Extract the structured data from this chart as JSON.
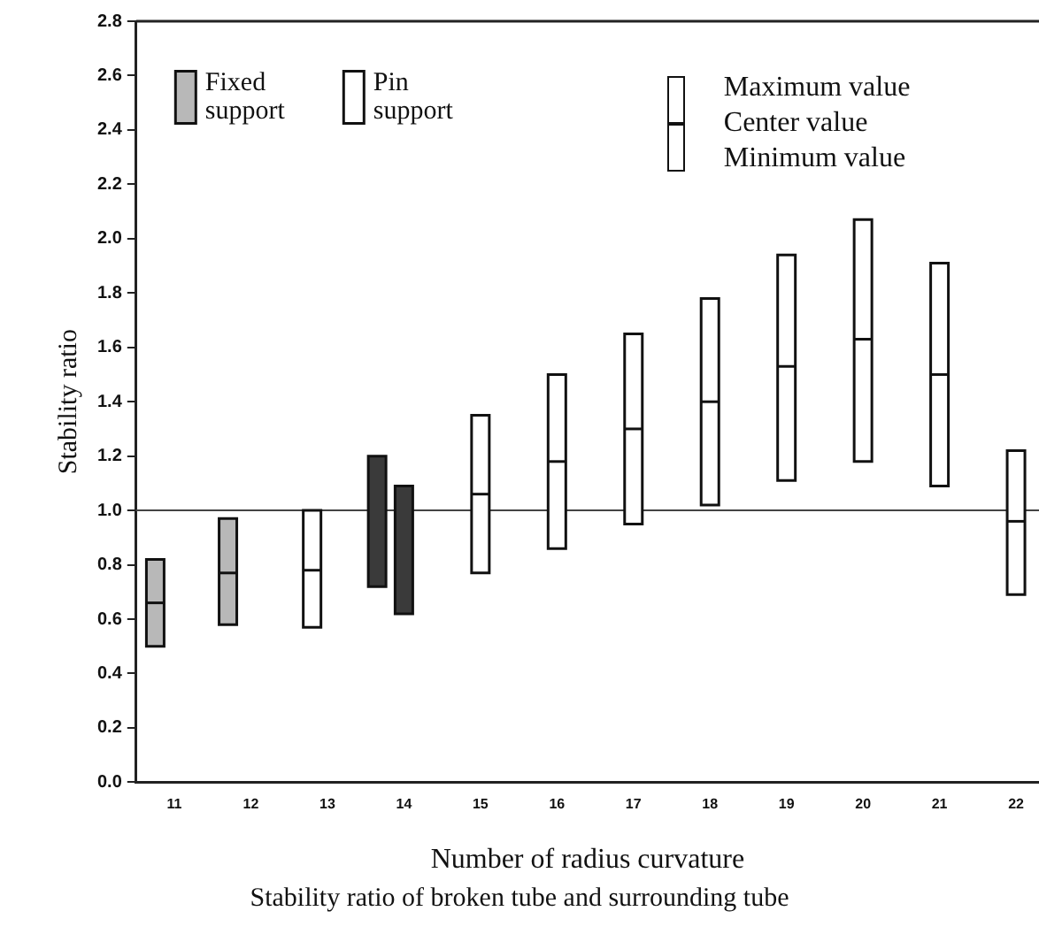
{
  "chart_data": {
    "type": "box",
    "title": "Stability ratio of broken tube and surrounding tube",
    "xlabel": "Number of radius curvature",
    "ylabel": "Stability ratio",
    "xlim": [
      10.5,
      22.3
    ],
    "xticks": [
      11,
      12,
      13,
      14,
      15,
      16,
      17,
      18,
      19,
      20,
      21,
      22
    ],
    "ylim": [
      0,
      2.8
    ],
    "yticks": [
      {
        "value": 0,
        "label": "0.0"
      },
      0.2,
      0.4,
      0.6,
      0.8,
      {
        "value": 1,
        "label": "1.0"
      },
      1.2,
      1.4,
      1.6,
      1.8,
      {
        "value": 2,
        "label": "2.0"
      },
      2.2,
      2.4,
      2.6,
      2.8
    ],
    "grid": false,
    "legend": "top left",
    "ref_lines": [
      {
        "axis": "y",
        "value": 1.0,
        "color": "#444444"
      }
    ],
    "annotations": [
      "Maximum value",
      "Center value",
      "Minimum value"
    ],
    "series": [
      {
        "name": "Fixed support",
        "color": "#b8b8b8",
        "x": [
          10.75,
          11.7
        ],
        "boxes": [
          {
            "low": 0.5,
            "q1": 0.5,
            "median": 0.66,
            "q3": 0.82,
            "high": 0.82
          },
          {
            "low": 0.58,
            "q1": 0.58,
            "median": 0.77,
            "q3": 0.97,
            "high": 0.97
          }
        ]
      },
      {
        "name": "Pin support",
        "color": "#ffffff",
        "x": [
          12.8,
          15,
          16,
          17,
          18,
          19,
          20,
          21,
          22
        ],
        "boxes": [
          {
            "low": 0.57,
            "q1": 0.57,
            "median": 0.78,
            "q3": 1.0,
            "high": 1.0
          },
          {
            "low": 0.77,
            "q1": 0.77,
            "median": 1.06,
            "q3": 1.35,
            "high": 1.35
          },
          {
            "low": 0.86,
            "q1": 0.86,
            "median": 1.18,
            "q3": 1.5,
            "high": 1.5
          },
          {
            "low": 0.95,
            "q1": 0.95,
            "median": 1.3,
            "q3": 1.65,
            "high": 1.65
          },
          {
            "low": 1.02,
            "q1": 1.02,
            "median": 1.4,
            "q3": 1.78,
            "high": 1.78
          },
          {
            "low": 1.11,
            "q1": 1.11,
            "median": 1.53,
            "q3": 1.94,
            "high": 1.94
          },
          {
            "low": 1.18,
            "q1": 1.18,
            "median": 1.63,
            "q3": 2.07,
            "high": 2.07
          },
          {
            "low": 1.09,
            "q1": 1.09,
            "median": 1.5,
            "q3": 1.91,
            "high": 1.91
          },
          {
            "low": 0.69,
            "q1": 0.69,
            "median": 0.96,
            "q3": 1.22,
            "high": 1.22
          }
        ]
      },
      {
        "color": "#3a3a3a",
        "x": [
          13.65,
          14.0
        ],
        "boxes": [
          {
            "low": 0.72,
            "q1": 0.72,
            "median": null,
            "q3": 1.2,
            "high": 1.2
          },
          {
            "low": 0.62,
            "q1": 0.62,
            "median": null,
            "q3": 1.09,
            "high": 1.09
          }
        ]
      }
    ]
  }
}
